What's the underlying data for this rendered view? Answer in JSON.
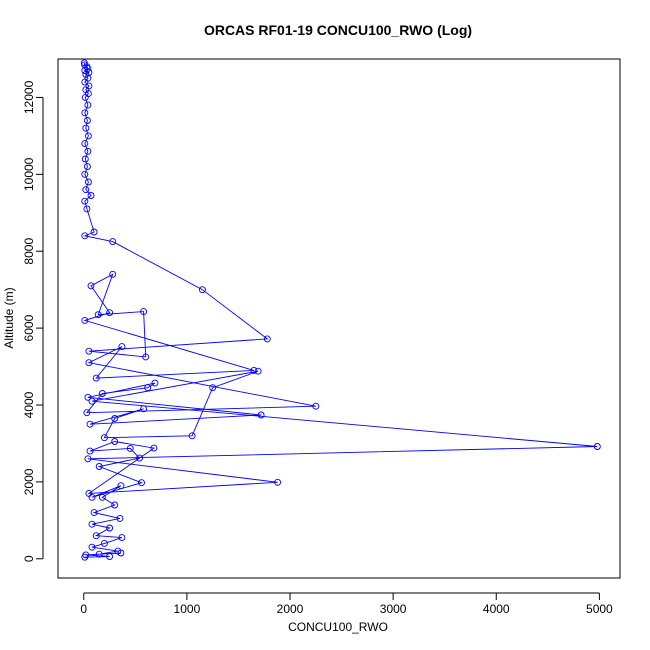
{
  "chart_data": {
    "type": "line",
    "title": "ORCAS RF01-19 CONCU100_RWO (Log)",
    "xlabel": "CONCU100_RWO",
    "ylabel": "Altitude (m)",
    "xlim": [
      -250,
      5200
    ],
    "ylim": [
      -500,
      13000
    ],
    "xticks": [
      0,
      1000,
      2000,
      3000,
      4000,
      5000
    ],
    "yticks": [
      0,
      2000,
      4000,
      6000,
      8000,
      10000,
      12000
    ],
    "grid": false,
    "legend": "none",
    "series": [
      {
        "color": "#0000ff",
        "marker": "open-circle",
        "points": [
          [
            5,
            12900
          ],
          [
            8,
            12850
          ],
          [
            30,
            12800
          ],
          [
            40,
            12750
          ],
          [
            10,
            12700
          ],
          [
            50,
            12650
          ],
          [
            20,
            12600
          ],
          [
            40,
            12500
          ],
          [
            10,
            12400
          ],
          [
            50,
            12300
          ],
          [
            20,
            12200
          ],
          [
            45,
            12100
          ],
          [
            15,
            12000
          ],
          [
            40,
            11800
          ],
          [
            10,
            11600
          ],
          [
            35,
            11400
          ],
          [
            20,
            11200
          ],
          [
            45,
            11000
          ],
          [
            10,
            10800
          ],
          [
            40,
            10600
          ],
          [
            15,
            10400
          ],
          [
            35,
            10200
          ],
          [
            10,
            10000
          ],
          [
            45,
            9800
          ],
          [
            20,
            9600
          ],
          [
            70,
            9450
          ],
          [
            10,
            9300
          ],
          [
            30,
            9100
          ],
          [
            100,
            8500
          ],
          [
            10,
            8400
          ],
          [
            280,
            8250
          ],
          [
            1150,
            7000
          ],
          [
            1780,
            5720
          ],
          [
            50,
            5400
          ],
          [
            600,
            5250
          ],
          [
            580,
            6430
          ],
          [
            140,
            6350
          ],
          [
            280,
            7400
          ],
          [
            70,
            7100
          ],
          [
            250,
            6400
          ],
          [
            10,
            6200
          ],
          [
            1650,
            4900
          ],
          [
            120,
            4700
          ],
          [
            370,
            5520
          ],
          [
            50,
            5100
          ],
          [
            2250,
            3970
          ],
          [
            30,
            3800
          ],
          [
            180,
            4300
          ],
          [
            620,
            4450
          ],
          [
            690,
            4570
          ],
          [
            40,
            4200
          ],
          [
            1720,
            3740
          ],
          [
            60,
            3500
          ],
          [
            580,
            3900
          ],
          [
            300,
            3650
          ],
          [
            200,
            3150
          ],
          [
            1050,
            3200
          ],
          [
            1250,
            4450
          ],
          [
            1690,
            4880
          ],
          [
            80,
            4100
          ],
          [
            4980,
            2920
          ],
          [
            40,
            2600
          ],
          [
            1880,
            1990
          ],
          [
            50,
            1700
          ],
          [
            680,
            2880
          ],
          [
            300,
            3050
          ],
          [
            60,
            2800
          ],
          [
            450,
            2870
          ],
          [
            540,
            2620
          ],
          [
            150,
            2400
          ],
          [
            560,
            1980
          ],
          [
            80,
            1600
          ],
          [
            360,
            1900
          ],
          [
            180,
            1600
          ],
          [
            300,
            1400
          ],
          [
            100,
            1200
          ],
          [
            350,
            1050
          ],
          [
            80,
            900
          ],
          [
            250,
            800
          ],
          [
            120,
            600
          ],
          [
            370,
            550
          ],
          [
            200,
            400
          ],
          [
            80,
            300
          ],
          [
            330,
            200
          ],
          [
            150,
            120
          ],
          [
            360,
            150
          ],
          [
            20,
            100
          ],
          [
            250,
            60
          ],
          [
            10,
            40
          ]
        ]
      }
    ]
  }
}
